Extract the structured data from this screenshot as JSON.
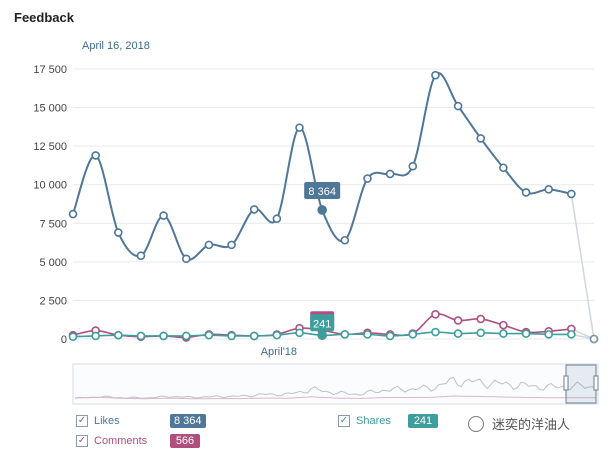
{
  "header": {
    "title": "Feedback",
    "date": "April 16, 2018"
  },
  "chart_data": {
    "type": "line",
    "ylim": [
      0,
      17500
    ],
    "yticks": [
      0,
      2500,
      5000,
      7500,
      10000,
      12500,
      15000,
      17500
    ],
    "ytick_labels": [
      "0",
      "2 500",
      "5 000",
      "7 500",
      "10 000",
      "12 500",
      "15 000",
      "17 500"
    ],
    "grid": true,
    "series": [
      {
        "name": "Likes",
        "color": "#4f7799",
        "values": [
          8100,
          11900,
          6900,
          5400,
          8000,
          5200,
          6100,
          6100,
          8400,
          7800,
          13700,
          8364,
          6400,
          10400,
          10700,
          11200,
          17100,
          15100,
          13000,
          11100,
          9500,
          9700,
          9400,
          0
        ]
      },
      {
        "name": "Comments",
        "color": "#b04f7e",
        "values": [
          250,
          550,
          250,
          150,
          200,
          100,
          300,
          250,
          200,
          300,
          700,
          566,
          300,
          400,
          300,
          350,
          1600,
          1200,
          1300,
          900,
          450,
          500,
          650,
          0
        ]
      },
      {
        "name": "Shares",
        "color": "#3e9e9e",
        "values": [
          150,
          200,
          250,
          200,
          200,
          200,
          250,
          200,
          200,
          250,
          400,
          241,
          300,
          300,
          200,
          300,
          450,
          350,
          400,
          350,
          350,
          300,
          300,
          0
        ]
      }
    ],
    "highlight_index": 11,
    "tooltips": {
      "likes": "8 364",
      "shares": "241"
    },
    "x_annotation": "April'18"
  },
  "legend": [
    {
      "label": "Likes",
      "value": "8 364",
      "color": "#4f7799",
      "check": "✓"
    },
    {
      "label": "Comments",
      "value": "566",
      "color": "#b04f7e",
      "check": "✓"
    },
    {
      "label": "Shares",
      "value": "241",
      "color": "#3e9e9e",
      "check": "✓"
    }
  ],
  "watermark": "迷奕的洋油人"
}
